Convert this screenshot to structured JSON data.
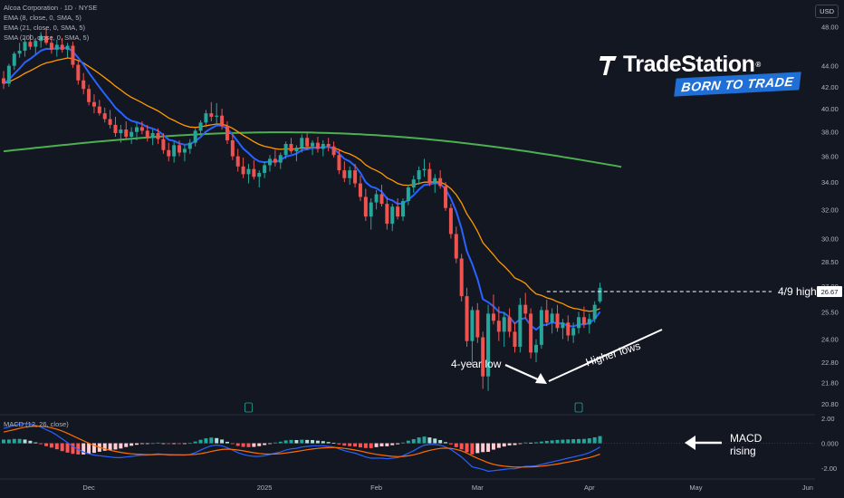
{
  "header": {
    "symbol_line": "Alcoa Corporation · 1D · NYSE",
    "ema8_label": "EMA (8, close, 0, SMA, 5)",
    "ema21_label": "EMA (21, close, 0, SMA, 5)",
    "sma200_label": "SMA (200, close, 0, SMA, 5)",
    "currency": "USD"
  },
  "macd_legend": "MACD (12, 26, close)",
  "brand": {
    "name": "TradeStation",
    "registered": "®",
    "tagline": "BORN TO TRADE"
  },
  "annotations": {
    "four_year_low": "4-year low",
    "higher_lows": "Higher lows",
    "macd_rising": "MACD\nrising",
    "high_line_label": "4/9 high",
    "high_price_tag": "26.67"
  },
  "colors": {
    "background": "#131722",
    "up": "#26a69a",
    "down": "#ef5350",
    "ema8": "#2962ff",
    "ema21": "#ff9800",
    "sma200": "#4caf50",
    "macd_line": "#2962ff",
    "signal_line": "#ff6d00",
    "hist_up": "#26a69a",
    "hist_down": "#ff5252",
    "axis_text": "#b2b5be"
  },
  "chart_data": {
    "type": "candlestick",
    "price_axis_ticks": [
      "48.00",
      "44.00",
      "42.00",
      "40.00",
      "38.00",
      "36.00",
      "34.00",
      "32.00",
      "30.00",
      "28.50",
      "27.00",
      "25.50",
      "24.00",
      "22.80",
      "21.80",
      "20.80"
    ],
    "price_axis_scale": "log",
    "price_range": [
      20.3,
      49.5
    ],
    "macd_axis_ticks": [
      "2.00",
      "0.000",
      "-2.00"
    ],
    "macd_range": [
      -2.8,
      2.3
    ],
    "x_axis_labels": [
      {
        "label": "Dec",
        "index": 16
      },
      {
        "label": "2025",
        "index": 49
      },
      {
        "label": "Feb",
        "index": 70
      },
      {
        "label": "Mar",
        "index": 89
      },
      {
        "label": "Apr",
        "index": 110
      },
      {
        "label": "May",
        "index": 130
      },
      {
        "label": "Jun",
        "index": 151
      }
    ],
    "ohlc": [
      [
        42.8,
        43.5,
        41.8,
        42.3
      ],
      [
        42.3,
        44.2,
        42.0,
        44.0
      ],
      [
        44.0,
        45.4,
        43.6,
        45.2
      ],
      [
        45.2,
        46.3,
        44.8,
        45.5
      ],
      [
        45.5,
        46.8,
        44.9,
        46.4
      ],
      [
        46.4,
        47.2,
        45.6,
        45.9
      ],
      [
        45.9,
        46.8,
        45.1,
        46.5
      ],
      [
        46.5,
        47.4,
        45.8,
        47.0
      ],
      [
        47.0,
        47.9,
        46.1,
        46.3
      ],
      [
        46.3,
        47.0,
        45.2,
        45.6
      ],
      [
        45.6,
        46.6,
        44.9,
        46.1
      ],
      [
        46.1,
        46.8,
        45.3,
        45.6
      ],
      [
        45.6,
        46.3,
        44.8,
        46.0
      ],
      [
        46.0,
        46.4,
        43.8,
        44.1
      ],
      [
        44.1,
        44.5,
        42.2,
        42.6
      ],
      [
        42.6,
        43.3,
        41.3,
        41.8
      ],
      [
        41.8,
        42.2,
        40.3,
        40.6
      ],
      [
        40.6,
        41.3,
        39.6,
        40.2
      ],
      [
        40.2,
        40.8,
        39.4,
        39.6
      ],
      [
        39.6,
        40.1,
        38.8,
        39.1
      ],
      [
        39.1,
        39.9,
        38.3,
        38.6
      ],
      [
        38.6,
        39.3,
        37.6,
        37.9
      ],
      [
        37.9,
        38.6,
        37.1,
        38.2
      ],
      [
        38.2,
        38.9,
        37.4,
        37.6
      ],
      [
        37.6,
        38.4,
        37.0,
        38.0
      ],
      [
        38.0,
        38.8,
        37.3,
        38.4
      ],
      [
        38.4,
        38.9,
        37.8,
        38.1
      ],
      [
        38.1,
        38.6,
        37.2,
        37.5
      ],
      [
        37.5,
        38.2,
        36.9,
        37.9
      ],
      [
        37.9,
        38.3,
        37.0,
        37.4
      ],
      [
        37.4,
        37.9,
        36.2,
        36.5
      ],
      [
        36.5,
        37.1,
        35.6,
        36.0
      ],
      [
        36.0,
        37.2,
        35.5,
        36.9
      ],
      [
        36.9,
        37.3,
        36.0,
        36.3
      ],
      [
        36.3,
        36.9,
        35.6,
        36.6
      ],
      [
        36.6,
        37.4,
        36.2,
        37.1
      ],
      [
        37.1,
        38.3,
        36.8,
        38.1
      ],
      [
        38.1,
        39.0,
        37.7,
        38.8
      ],
      [
        38.8,
        39.9,
        38.4,
        39.6
      ],
      [
        39.6,
        40.6,
        38.9,
        39.3
      ],
      [
        39.3,
        40.5,
        38.6,
        39.4
      ],
      [
        39.4,
        40.0,
        38.2,
        38.5
      ],
      [
        38.5,
        38.9,
        37.0,
        37.3
      ],
      [
        37.3,
        37.8,
        35.7,
        36.0
      ],
      [
        36.0,
        36.6,
        34.8,
        35.2
      ],
      [
        35.2,
        35.9,
        34.3,
        34.6
      ],
      [
        34.6,
        35.4,
        33.9,
        35.0
      ],
      [
        35.0,
        35.7,
        34.2,
        34.4
      ],
      [
        34.4,
        34.9,
        33.6,
        34.7
      ],
      [
        34.7,
        35.6,
        34.3,
        35.3
      ],
      [
        35.3,
        36.1,
        34.8,
        35.8
      ],
      [
        35.8,
        36.5,
        35.2,
        35.5
      ],
      [
        35.5,
        36.3,
        35.0,
        36.1
      ],
      [
        36.1,
        37.2,
        35.8,
        37.0
      ],
      [
        37.0,
        37.5,
        36.2,
        36.4
      ],
      [
        36.4,
        36.9,
        35.6,
        36.7
      ],
      [
        36.7,
        37.8,
        36.3,
        37.5
      ],
      [
        37.5,
        37.9,
        36.5,
        36.8
      ],
      [
        36.8,
        37.3,
        36.1,
        37.1
      ],
      [
        37.1,
        37.6,
        36.3,
        36.6
      ],
      [
        36.6,
        37.3,
        36.0,
        37.0
      ],
      [
        37.0,
        37.5,
        36.4,
        36.8
      ],
      [
        36.8,
        37.2,
        35.9,
        36.1
      ],
      [
        36.1,
        36.6,
        34.6,
        34.9
      ],
      [
        34.9,
        35.6,
        34.0,
        34.3
      ],
      [
        34.3,
        35.2,
        33.8,
        34.9
      ],
      [
        34.9,
        35.4,
        33.6,
        33.9
      ],
      [
        33.9,
        34.5,
        32.6,
        32.9
      ],
      [
        32.9,
        33.5,
        31.2,
        31.5
      ],
      [
        31.5,
        32.8,
        30.6,
        32.5
      ],
      [
        32.5,
        33.4,
        32.0,
        33.1
      ],
      [
        33.1,
        33.8,
        32.2,
        32.4
      ],
      [
        32.4,
        32.9,
        30.6,
        31.0
      ],
      [
        31.0,
        32.4,
        30.5,
        32.2
      ],
      [
        32.2,
        32.8,
        31.3,
        31.5
      ],
      [
        31.5,
        32.8,
        31.2,
        32.6
      ],
      [
        32.6,
        33.8,
        32.3,
        33.6
      ],
      [
        33.6,
        34.5,
        33.2,
        34.2
      ],
      [
        34.2,
        35.2,
        33.8,
        34.9
      ],
      [
        34.9,
        35.8,
        34.4,
        35.0
      ],
      [
        35.0,
        35.5,
        33.7,
        33.9
      ],
      [
        33.9,
        34.6,
        33.2,
        34.3
      ],
      [
        34.3,
        34.9,
        33.5,
        33.7
      ],
      [
        33.7,
        34.0,
        31.9,
        32.1
      ],
      [
        32.1,
        32.4,
        30.0,
        30.3
      ],
      [
        30.3,
        30.8,
        28.4,
        28.7
      ],
      [
        28.7,
        29.0,
        26.1,
        26.4
      ],
      [
        26.4,
        26.9,
        23.6,
        23.9
      ],
      [
        23.9,
        25.8,
        22.6,
        25.6
      ],
      [
        25.6,
        26.0,
        23.8,
        24.1
      ],
      [
        24.1,
        24.4,
        21.5,
        22.1
      ],
      [
        22.1,
        25.9,
        21.4,
        25.4
      ],
      [
        25.4,
        26.5,
        24.8,
        25.0
      ],
      [
        25.0,
        25.8,
        23.9,
        24.4
      ],
      [
        24.4,
        25.5,
        23.6,
        25.2
      ],
      [
        25.2,
        25.7,
        24.1,
        24.4
      ],
      [
        24.4,
        24.9,
        23.3,
        23.6
      ],
      [
        23.6,
        26.3,
        23.3,
        25.9
      ],
      [
        25.9,
        26.6,
        25.1,
        25.4
      ],
      [
        25.4,
        25.7,
        23.0,
        23.3
      ],
      [
        23.3,
        24.0,
        22.8,
        23.7
      ],
      [
        23.7,
        25.8,
        23.5,
        25.6
      ],
      [
        25.6,
        26.2,
        24.7,
        24.9
      ],
      [
        24.9,
        25.7,
        24.3,
        25.4
      ],
      [
        25.4,
        25.9,
        24.4,
        24.6
      ],
      [
        24.6,
        25.1,
        24.0,
        24.9
      ],
      [
        24.9,
        25.3,
        23.9,
        24.2
      ],
      [
        24.2,
        24.9,
        23.8,
        24.6
      ],
      [
        24.6,
        25.5,
        24.3,
        25.2
      ],
      [
        25.2,
        25.8,
        24.6,
        24.8
      ],
      [
        24.8,
        25.4,
        24.3,
        25.1
      ],
      [
        25.1,
        26.1,
        24.9,
        25.9
      ],
      [
        26.1,
        27.2,
        26.0,
        26.9
      ]
    ],
    "high_line_value": 26.67,
    "macd_line": [
      1.2,
      1.3,
      1.45,
      1.55,
      1.6,
      1.55,
      1.45,
      1.3,
      1.1,
      0.9,
      0.65,
      0.35,
      0.05,
      -0.25,
      -0.5,
      -0.7,
      -0.85,
      -0.95,
      -1.0,
      -1.05,
      -1.1,
      -1.15,
      -1.15,
      -1.1,
      -1.05,
      -1.0,
      -0.95,
      -0.95,
      -0.9,
      -0.85,
      -0.9,
      -0.95,
      -0.95,
      -0.95,
      -0.95,
      -0.9,
      -0.75,
      -0.55,
      -0.35,
      -0.2,
      -0.15,
      -0.2,
      -0.35,
      -0.55,
      -0.75,
      -0.9,
      -1.0,
      -1.05,
      -1.05,
      -1.0,
      -0.9,
      -0.8,
      -0.7,
      -0.55,
      -0.45,
      -0.4,
      -0.3,
      -0.25,
      -0.2,
      -0.2,
      -0.2,
      -0.25,
      -0.3,
      -0.45,
      -0.6,
      -0.7,
      -0.8,
      -0.95,
      -1.1,
      -1.2,
      -1.2,
      -1.2,
      -1.25,
      -1.2,
      -1.15,
      -1.0,
      -0.8,
      -0.6,
      -0.35,
      -0.15,
      -0.1,
      -0.1,
      -0.15,
      -0.3,
      -0.5,
      -0.8,
      -1.1,
      -1.5,
      -1.9,
      -2.0,
      -2.1,
      -2.25,
      -2.2,
      -2.15,
      -2.1,
      -2.05,
      -2.05,
      -1.95,
      -1.85,
      -1.85,
      -1.8,
      -1.7,
      -1.6,
      -1.5,
      -1.4,
      -1.3,
      -1.2,
      -1.1,
      -1.0,
      -0.9,
      -0.75,
      -0.55,
      -0.3
    ],
    "signal_line": [
      0.9,
      1.0,
      1.1,
      1.2,
      1.3,
      1.35,
      1.38,
      1.37,
      1.33,
      1.25,
      1.13,
      0.98,
      0.8,
      0.6,
      0.4,
      0.2,
      0.0,
      -0.18,
      -0.32,
      -0.45,
      -0.56,
      -0.65,
      -0.73,
      -0.8,
      -0.85,
      -0.88,
      -0.9,
      -0.91,
      -0.91,
      -0.9,
      -0.9,
      -0.91,
      -0.92,
      -0.92,
      -0.93,
      -0.92,
      -0.89,
      -0.83,
      -0.75,
      -0.66,
      -0.57,
      -0.5,
      -0.47,
      -0.49,
      -0.54,
      -0.61,
      -0.69,
      -0.76,
      -0.82,
      -0.86,
      -0.87,
      -0.86,
      -0.83,
      -0.78,
      -0.72,
      -0.66,
      -0.59,
      -0.52,
      -0.46,
      -0.41,
      -0.37,
      -0.35,
      -0.34,
      -0.36,
      -0.41,
      -0.47,
      -0.54,
      -0.62,
      -0.72,
      -0.81,
      -0.89,
      -0.95,
      -1.01,
      -1.05,
      -1.07,
      -1.06,
      -1.01,
      -0.93,
      -0.82,
      -0.69,
      -0.57,
      -0.48,
      -0.41,
      -0.39,
      -0.41,
      -0.49,
      -0.61,
      -0.79,
      -1.01,
      -1.21,
      -1.39,
      -1.56,
      -1.69,
      -1.78,
      -1.84,
      -1.88,
      -1.91,
      -1.92,
      -1.91,
      -1.9,
      -1.88,
      -1.84,
      -1.79,
      -1.73,
      -1.67,
      -1.59,
      -1.51,
      -1.43,
      -1.34,
      -1.25,
      -1.15,
      -1.03,
      -0.88
    ]
  }
}
